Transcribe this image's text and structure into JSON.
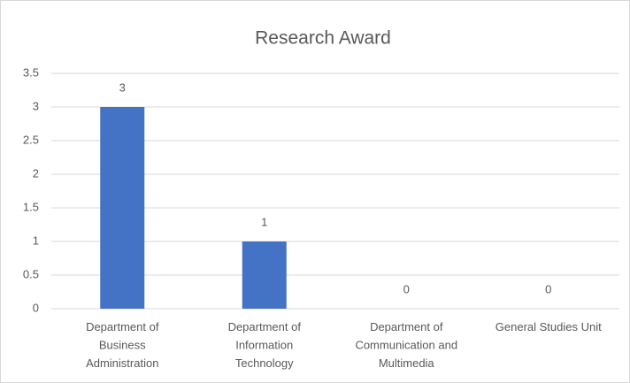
{
  "chart_data": {
    "type": "bar",
    "title": "Research Award",
    "categories": [
      "Department of Business Administration",
      "Department of Information Technology",
      "Department of Communication and Multimedia",
      "General Studies Unit"
    ],
    "values": [
      3,
      1,
      0,
      0
    ],
    "color": "#4472c4",
    "ylim": [
      0,
      3.5
    ],
    "yticks": [
      0,
      0.5,
      1,
      1.5,
      2,
      2.5,
      3,
      3.5
    ],
    "grid": true
  }
}
